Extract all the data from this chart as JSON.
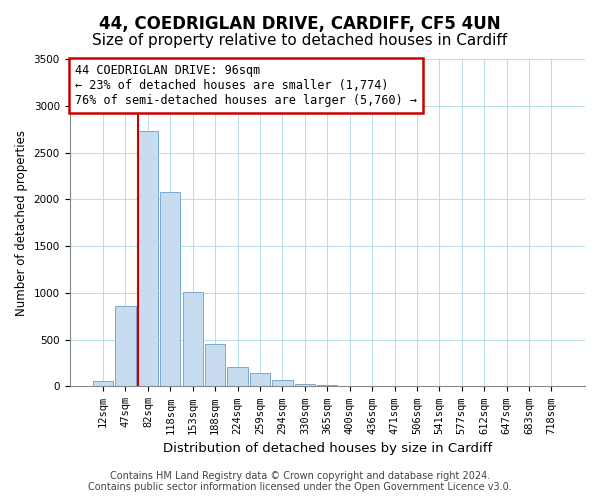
{
  "title": "44, COEDRIGLAN DRIVE, CARDIFF, CF5 4UN",
  "subtitle": "Size of property relative to detached houses in Cardiff",
  "xlabel": "Distribution of detached houses by size in Cardiff",
  "ylabel": "Number of detached properties",
  "bar_labels": [
    "12sqm",
    "47sqm",
    "82sqm",
    "118sqm",
    "153sqm",
    "188sqm",
    "224sqm",
    "259sqm",
    "294sqm",
    "330sqm",
    "365sqm",
    "400sqm",
    "436sqm",
    "471sqm",
    "506sqm",
    "541sqm",
    "577sqm",
    "612sqm",
    "647sqm",
    "683sqm",
    "718sqm"
  ],
  "bar_values": [
    55,
    855,
    2730,
    2075,
    1010,
    455,
    210,
    145,
    65,
    30,
    20,
    5,
    3,
    1,
    0,
    0,
    0,
    0,
    0,
    0,
    0
  ],
  "bar_color": "#c8dcf0",
  "bar_edge_color": "#7aaad0",
  "redline_index": 2,
  "annotation_line1": "44 COEDRIGLAN DRIVE: 96sqm",
  "annotation_line2": "← 23% of detached houses are smaller (1,774)",
  "annotation_line3": "76% of semi-detached houses are larger (5,760) →",
  "annotation_box_facecolor": "#ffffff",
  "annotation_box_edgecolor": "#cc0000",
  "redline_color": "#cc0000",
  "ylim": [
    0,
    3500
  ],
  "yticks": [
    0,
    500,
    1000,
    1500,
    2000,
    2500,
    3000,
    3500
  ],
  "footer1": "Contains HM Land Registry data © Crown copyright and database right 2024.",
  "footer2": "Contains public sector information licensed under the Open Government Licence v3.0.",
  "title_fontsize": 12,
  "xlabel_fontsize": 9.5,
  "ylabel_fontsize": 8.5,
  "tick_fontsize": 7.5,
  "annotation_fontsize": 8.5,
  "footer_fontsize": 7
}
